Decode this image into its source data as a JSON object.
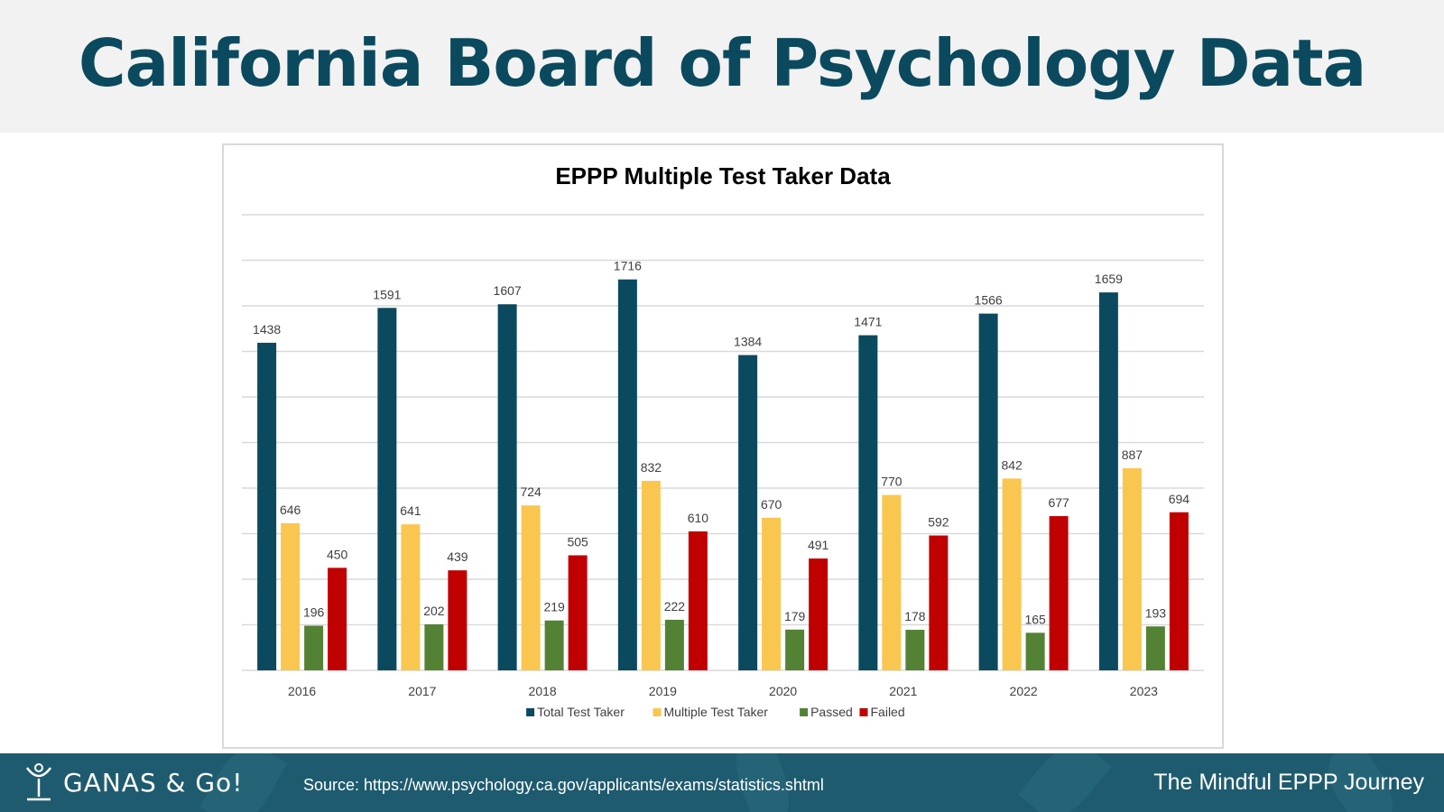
{
  "header": {
    "title": "California Board of Psychology Data"
  },
  "footer": {
    "logo_text": "GANAS & Go!",
    "source": "Source: https://www.psychology.ca.gov/applicants/exams/statistics.shtml",
    "tagline": "The Mindful EPPP Journey"
  },
  "chart_data": {
    "type": "bar",
    "title": "EPPP Multiple Test Taker Data",
    "xlabel": "",
    "ylabel": "",
    "ylim": [
      0,
      2000
    ],
    "grid": true,
    "legend_position": "bottom",
    "categories": [
      "2016",
      "2017",
      "2018",
      "2019",
      "2020",
      "2021",
      "2022",
      "2023"
    ],
    "series": [
      {
        "name": "Total Test Taker",
        "color": "#0b4a5e",
        "values": [
          1438,
          1591,
          1607,
          1716,
          1384,
          1471,
          1566,
          1659
        ]
      },
      {
        "name": "Multiple Test Taker",
        "color": "#f9c74f",
        "values": [
          646,
          641,
          724,
          832,
          670,
          770,
          842,
          887
        ]
      },
      {
        "name": "Passed",
        "color": "#548235",
        "values": [
          196,
          202,
          219,
          222,
          179,
          178,
          165,
          193
        ]
      },
      {
        "name": "Failed",
        "color": "#c00000",
        "values": [
          450,
          439,
          505,
          610,
          491,
          592,
          677,
          694
        ]
      }
    ]
  }
}
